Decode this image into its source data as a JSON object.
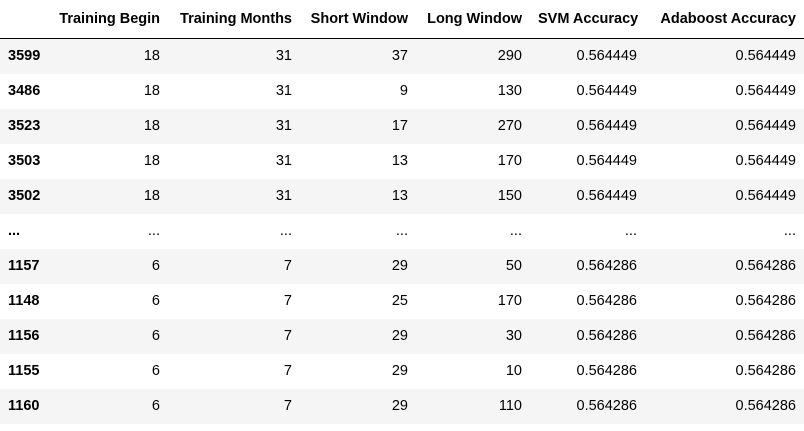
{
  "table": {
    "index_header": "",
    "columns": [
      "Training Begin",
      "Training Months",
      "Short Window",
      "Long Window",
      "SVM Accuracy",
      "Adaboost Accuracy"
    ],
    "rows": [
      {
        "index": "3599",
        "cells": [
          "18",
          "31",
          "37",
          "290",
          "0.564449",
          "0.564449"
        ]
      },
      {
        "index": "3486",
        "cells": [
          "18",
          "31",
          "9",
          "130",
          "0.564449",
          "0.564449"
        ]
      },
      {
        "index": "3523",
        "cells": [
          "18",
          "31",
          "17",
          "270",
          "0.564449",
          "0.564449"
        ]
      },
      {
        "index": "3503",
        "cells": [
          "18",
          "31",
          "13",
          "170",
          "0.564449",
          "0.564449"
        ]
      },
      {
        "index": "3502",
        "cells": [
          "18",
          "31",
          "13",
          "150",
          "0.564449",
          "0.564449"
        ]
      },
      {
        "index": "...",
        "cells": [
          "...",
          "...",
          "...",
          "...",
          "...",
          "..."
        ]
      },
      {
        "index": "1157",
        "cells": [
          "6",
          "7",
          "29",
          "50",
          "0.564286",
          "0.564286"
        ]
      },
      {
        "index": "1148",
        "cells": [
          "6",
          "7",
          "25",
          "170",
          "0.564286",
          "0.564286"
        ]
      },
      {
        "index": "1156",
        "cells": [
          "6",
          "7",
          "29",
          "30",
          "0.564286",
          "0.564286"
        ]
      },
      {
        "index": "1155",
        "cells": [
          "6",
          "7",
          "29",
          "10",
          "0.564286",
          "0.564286"
        ]
      },
      {
        "index": "1160",
        "cells": [
          "6",
          "7",
          "29",
          "110",
          "0.564286",
          "0.564286"
        ]
      }
    ]
  }
}
